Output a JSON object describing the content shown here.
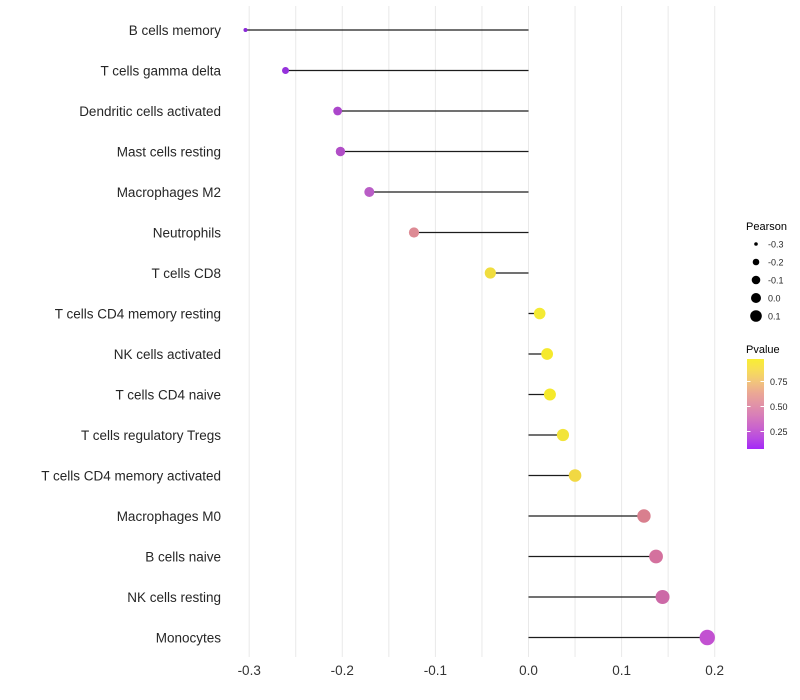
{
  "chart_data": {
    "type": "scatter",
    "variant": "lollipop",
    "orientation": "horizontal",
    "title": "",
    "xlabel": "",
    "ylabel": "",
    "xlim": [
      -0.33,
      0.245
    ],
    "grid": "vertical-only",
    "grid_color": "#e9e9e9",
    "stem_color": "#1c1c1c",
    "axis_text_color": "#333333",
    "background_color": "#ffffff",
    "x_ticks": [
      {
        "label": "-0.3",
        "value": -0.3
      },
      {
        "label": "-0.2",
        "value": -0.2
      },
      {
        "label": "-0.1",
        "value": -0.1
      },
      {
        "label": "0.0",
        "value": 0.0
      },
      {
        "label": "0.1",
        "value": 0.1
      },
      {
        "label": "0.2",
        "value": 0.2
      }
    ],
    "gridline_values": [
      -0.3,
      -0.25,
      -0.2,
      -0.15,
      -0.1,
      -0.05,
      0.0,
      0.05,
      0.1,
      0.15,
      0.2
    ],
    "rows": [
      {
        "label": "B cells memory",
        "pearson": -0.304,
        "dot_color": "#8a28d8",
        "radius": 2.0
      },
      {
        "label": "T cells gamma delta",
        "pearson": -0.261,
        "dot_color": "#9632dc",
        "radius": 3.5
      },
      {
        "label": "Dendritic cells activated",
        "pearson": -0.205,
        "dot_color": "#ab46cb",
        "radius": 4.4
      },
      {
        "label": "Mast cells resting",
        "pearson": -0.202,
        "dot_color": "#b14ec7",
        "radius": 4.7
      },
      {
        "label": "Macrophages M2",
        "pearson": -0.171,
        "dot_color": "#b95dc6",
        "radius": 5.0
      },
      {
        "label": "Neutrophils",
        "pearson": -0.123,
        "dot_color": "#dd8a94",
        "radius": 5.1
      },
      {
        "label": "T cells CD8",
        "pearson": -0.041,
        "dot_color": "#f0dd3e",
        "radius": 5.6
      },
      {
        "label": "T cells CD4 memory resting",
        "pearson": 0.012,
        "dot_color": "#f4ea34",
        "radius": 5.8
      },
      {
        "label": "NK cells activated",
        "pearson": 0.02,
        "dot_color": "#f5e92c",
        "radius": 5.9
      },
      {
        "label": "T cells CD4 naive",
        "pearson": 0.023,
        "dot_color": "#f5e92b",
        "radius": 6.0
      },
      {
        "label": "T cells regulatory  Tregs",
        "pearson": 0.037,
        "dot_color": "#f2e43a",
        "radius": 6.1
      },
      {
        "label": "T cells CD4 memory activated",
        "pearson": 0.05,
        "dot_color": "#f1d842",
        "radius": 6.3
      },
      {
        "label": "Macrophages M0",
        "pearson": 0.124,
        "dot_color": "#d97f8e",
        "radius": 6.7
      },
      {
        "label": "B cells naive",
        "pearson": 0.137,
        "dot_color": "#d4719e",
        "radius": 6.9
      },
      {
        "label": "NK cells resting",
        "pearson": 0.144,
        "dot_color": "#cc69a7",
        "radius": 7.0
      },
      {
        "label": "Monocytes",
        "pearson": 0.192,
        "dot_color": "#c251d1",
        "radius": 7.7
      }
    ],
    "legend_pearson": {
      "title": "Pearson",
      "dot_color": "#000000",
      "items": [
        {
          "label": "-0.3",
          "radius": 1.8
        },
        {
          "label": "-0.2",
          "radius": 3.3
        },
        {
          "label": "-0.1",
          "radius": 4.3
        },
        {
          "label": "0.0",
          "radius": 5.0
        },
        {
          "label": "0.1",
          "radius": 5.8
        }
      ]
    },
    "legend_pvalue": {
      "title": "Pvalue",
      "tick_labels": [
        "0.75",
        "0.50",
        "0.25"
      ],
      "gradient_top_to_bottom": [
        "#f9ee33",
        "#f7dd58",
        "#f2c57b",
        "#eba894",
        "#e294a6",
        "#d87eb8",
        "#cb66cb",
        "#b94ce0",
        "#a428f8"
      ]
    }
  }
}
